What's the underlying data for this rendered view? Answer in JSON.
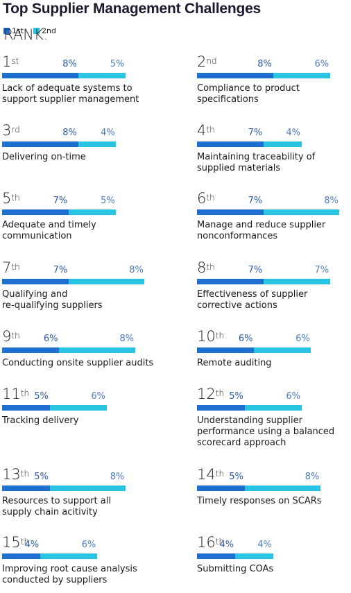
{
  "title": "Top Supplier Management Challenges",
  "legend": {
    "label": "RANK:",
    "first": "1st",
    "second": "2nd"
  },
  "colors": {
    "first": "#1f6fd1",
    "second": "#29c4e1"
  },
  "chart_data": {
    "type": "bar",
    "stacked": true,
    "unit": "%",
    "series_names": [
      "1st",
      "2nd"
    ],
    "items": [
      {
        "rank_num": "1",
        "rank_suffix": "st",
        "label_lines": [
          "Lack of adequate systems to",
          "support supplier management"
        ],
        "first": 8,
        "second": 5,
        "first_label": "8%",
        "second_label": "5%"
      },
      {
        "rank_num": "2",
        "rank_suffix": "nd",
        "label_lines": [
          "Compliance to product",
          "specifications"
        ],
        "first": 8,
        "second": 6,
        "first_label": "8%",
        "second_label": "6%"
      },
      {
        "rank_num": "3",
        "rank_suffix": "rd",
        "label_lines": [
          "Delivering on-time"
        ],
        "first": 8,
        "second": 4,
        "first_label": "8%",
        "second_label": "4%"
      },
      {
        "rank_num": "4",
        "rank_suffix": "th",
        "label_lines": [
          "Maintaining traceability of",
          "supplied materials"
        ],
        "first": 7,
        "second": 4,
        "first_label": "7%",
        "second_label": "4%"
      },
      {
        "rank_num": "5",
        "rank_suffix": "th",
        "label_lines": [
          "Adequate and timely",
          "communication"
        ],
        "first": 7,
        "second": 5,
        "first_label": "7%",
        "second_label": "5%"
      },
      {
        "rank_num": "6",
        "rank_suffix": "th",
        "label_lines": [
          "Manage and reduce supplier",
          "nonconformances"
        ],
        "first": 7,
        "second": 8,
        "first_label": "7%",
        "second_label": "8%"
      },
      {
        "rank_num": "7",
        "rank_suffix": "th",
        "label_lines": [
          "Qualifying and",
          "re-qualifying suppliers"
        ],
        "first": 7,
        "second": 8,
        "first_label": "7%",
        "second_label": "8%"
      },
      {
        "rank_num": "8",
        "rank_suffix": "th",
        "label_lines": [
          "Effectiveness of supplier",
          "corrective actions"
        ],
        "first": 7,
        "second": 7,
        "first_label": "7%",
        "second_label": "7%"
      },
      {
        "rank_num": "9",
        "rank_suffix": "th",
        "label_lines": [
          "Conducting onsite supplier audits"
        ],
        "first": 6,
        "second": 8,
        "first_label": "6%",
        "second_label": "8%"
      },
      {
        "rank_num": "10",
        "rank_suffix": "th",
        "label_lines": [
          "Remote auditing"
        ],
        "first": 6,
        "second": 6,
        "first_label": "6%",
        "second_label": "6%"
      },
      {
        "rank_num": "11",
        "rank_suffix": "th",
        "label_lines": [
          "Tracking delivery"
        ],
        "first": 5,
        "second": 6,
        "first_label": "5%",
        "second_label": "6%"
      },
      {
        "rank_num": "12",
        "rank_suffix": "th",
        "label_lines": [
          "Understanding supplier",
          "performance using a balanced",
          "scorecard approach"
        ],
        "first": 5,
        "second": 6,
        "first_label": "5%",
        "second_label": "6%"
      },
      {
        "rank_num": "13",
        "rank_suffix": "th",
        "label_lines": [
          "Resources to support all",
          "supply chain acitivity"
        ],
        "first": 5,
        "second": 8,
        "first_label": "5%",
        "second_label": "8%"
      },
      {
        "rank_num": "14",
        "rank_suffix": "th",
        "label_lines": [
          "Timely responses on SCARs"
        ],
        "first": 5,
        "second": 8,
        "first_label": "5%",
        "second_label": "8%"
      },
      {
        "rank_num": "15",
        "rank_suffix": "th",
        "label_lines": [
          "Improving root cause analysis",
          "conducted by suppliers"
        ],
        "first": 4,
        "second": 6,
        "first_label": "4%",
        "second_label": "6%"
      },
      {
        "rank_num": "16",
        "rank_suffix": "th",
        "label_lines": [
          "Submitting COAs"
        ],
        "first": 4,
        "second": 4,
        "first_label": "4%",
        "second_label": "4%"
      }
    ]
  }
}
